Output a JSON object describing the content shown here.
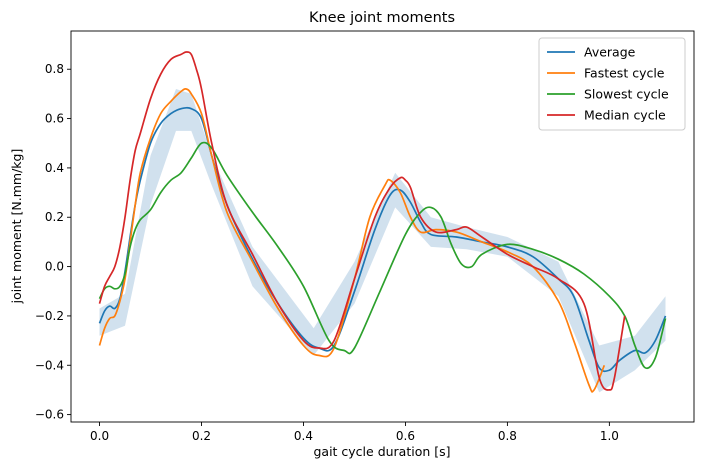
{
  "chart_data": {
    "type": "line",
    "title": "Knee joint moments",
    "xlabel": "gait cycle duration [s]",
    "ylabel": "joint moment [N.mm/kg]",
    "xlim": [
      -0.056,
      1.166
    ],
    "ylim": [
      -0.63,
      0.955
    ],
    "xticks": [
      0.0,
      0.2,
      0.4,
      0.6,
      0.8,
      1.0
    ],
    "xtick_labels": [
      "0.0",
      "0.2",
      "0.4",
      "0.6",
      "0.8",
      "1.0"
    ],
    "yticks": [
      -0.6,
      -0.4,
      -0.2,
      0.0,
      0.2,
      0.4,
      0.6,
      0.8
    ],
    "ytick_labels": [
      "−0.6",
      "−0.4",
      "−0.2",
      "0.0",
      "0.2",
      "0.4",
      "0.6",
      "0.8"
    ],
    "grid": false,
    "legend": {
      "position": "top-right"
    },
    "band": {
      "label": "",
      "color": "#b3cde3",
      "x": [
        0.0,
        0.05,
        0.1,
        0.15,
        0.18,
        0.22,
        0.3,
        0.42,
        0.5,
        0.58,
        0.65,
        0.72,
        0.8,
        0.9,
        0.98,
        1.05,
        1.11
      ],
      "upper": [
        -0.17,
        -0.11,
        0.45,
        0.72,
        0.7,
        0.45,
        0.08,
        -0.25,
        0.02,
        0.38,
        0.2,
        0.16,
        0.12,
        0.02,
        -0.32,
        -0.28,
        -0.12
      ],
      "lower": [
        -0.28,
        -0.24,
        0.25,
        0.55,
        0.55,
        0.33,
        -0.08,
        -0.36,
        -0.15,
        0.24,
        0.08,
        0.07,
        0.04,
        -0.12,
        -0.51,
        -0.42,
        -0.3
      ]
    },
    "series": [
      {
        "name": "Average",
        "color": "#1f77b4",
        "x": [
          0.0,
          0.01,
          0.02,
          0.03,
          0.04,
          0.05,
          0.06,
          0.07,
          0.08,
          0.1,
          0.12,
          0.14,
          0.16,
          0.18,
          0.2,
          0.22,
          0.25,
          0.3,
          0.35,
          0.4,
          0.43,
          0.46,
          0.5,
          0.54,
          0.57,
          0.59,
          0.61,
          0.63,
          0.65,
          0.7,
          0.75,
          0.8,
          0.85,
          0.9,
          0.93,
          0.96,
          0.98,
          1.0,
          1.02,
          1.05,
          1.07,
          1.09,
          1.11
        ],
        "y": [
          -0.23,
          -0.18,
          -0.16,
          -0.17,
          -0.13,
          -0.02,
          0.12,
          0.25,
          0.35,
          0.5,
          0.58,
          0.62,
          0.64,
          0.64,
          0.6,
          0.45,
          0.25,
          0.03,
          -0.15,
          -0.29,
          -0.33,
          -0.32,
          -0.1,
          0.15,
          0.29,
          0.31,
          0.26,
          0.18,
          0.13,
          0.12,
          0.1,
          0.08,
          0.04,
          -0.05,
          -0.12,
          -0.3,
          -0.41,
          -0.42,
          -0.38,
          -0.34,
          -0.35,
          -0.3,
          -0.2
        ]
      },
      {
        "name": "Fastest cycle",
        "color": "#ff7f0e",
        "x": [
          0.0,
          0.01,
          0.02,
          0.03,
          0.04,
          0.05,
          0.06,
          0.07,
          0.08,
          0.1,
          0.12,
          0.14,
          0.16,
          0.17,
          0.18,
          0.2,
          0.22,
          0.25,
          0.3,
          0.35,
          0.4,
          0.43,
          0.46,
          0.5,
          0.53,
          0.56,
          0.57,
          0.59,
          0.61,
          0.63,
          0.66,
          0.7,
          0.75,
          0.8,
          0.85,
          0.9,
          0.93,
          0.96,
          0.97,
          0.99
        ],
        "y": [
          -0.32,
          -0.25,
          -0.21,
          -0.2,
          -0.14,
          -0.05,
          0.1,
          0.25,
          0.38,
          0.52,
          0.62,
          0.67,
          0.71,
          0.72,
          0.7,
          0.62,
          0.45,
          0.22,
          0.02,
          -0.17,
          -0.32,
          -0.36,
          -0.33,
          -0.05,
          0.2,
          0.33,
          0.35,
          0.3,
          0.2,
          0.14,
          0.15,
          0.14,
          0.1,
          0.06,
          0.0,
          -0.14,
          -0.3,
          -0.48,
          -0.5,
          -0.4
        ]
      },
      {
        "name": "Slowest cycle",
        "color": "#2ca02c",
        "x": [
          0.0,
          0.01,
          0.02,
          0.03,
          0.04,
          0.05,
          0.06,
          0.07,
          0.08,
          0.1,
          0.12,
          0.14,
          0.16,
          0.18,
          0.2,
          0.22,
          0.25,
          0.3,
          0.35,
          0.4,
          0.45,
          0.48,
          0.5,
          0.55,
          0.6,
          0.63,
          0.65,
          0.67,
          0.69,
          0.71,
          0.73,
          0.75,
          0.8,
          0.85,
          0.9,
          0.95,
          1.0,
          1.03,
          1.05,
          1.07,
          1.09,
          1.11
        ],
        "y": [
          -0.13,
          -0.09,
          -0.08,
          -0.09,
          -0.08,
          -0.03,
          0.08,
          0.15,
          0.19,
          0.23,
          0.3,
          0.35,
          0.38,
          0.44,
          0.5,
          0.48,
          0.37,
          0.22,
          0.08,
          -0.08,
          -0.3,
          -0.34,
          -0.33,
          -0.1,
          0.13,
          0.22,
          0.24,
          0.2,
          0.09,
          0.01,
          0.0,
          0.05,
          0.09,
          0.07,
          0.03,
          -0.03,
          -0.12,
          -0.2,
          -0.32,
          -0.41,
          -0.37,
          -0.21
        ]
      },
      {
        "name": "Median cycle",
        "color": "#d62728",
        "x": [
          0.0,
          0.01,
          0.02,
          0.03,
          0.04,
          0.05,
          0.06,
          0.07,
          0.08,
          0.1,
          0.12,
          0.14,
          0.16,
          0.17,
          0.18,
          0.19,
          0.2,
          0.22,
          0.25,
          0.3,
          0.35,
          0.4,
          0.43,
          0.46,
          0.5,
          0.54,
          0.57,
          0.59,
          0.6,
          0.61,
          0.63,
          0.66,
          0.7,
          0.72,
          0.75,
          0.8,
          0.85,
          0.9,
          0.95,
          0.98,
          1.0,
          1.01,
          1.03
        ],
        "y": [
          -0.15,
          -0.08,
          -0.04,
          0.0,
          0.08,
          0.2,
          0.35,
          0.47,
          0.54,
          0.68,
          0.78,
          0.84,
          0.86,
          0.87,
          0.86,
          0.8,
          0.72,
          0.5,
          0.25,
          0.05,
          -0.15,
          -0.3,
          -0.33,
          -0.3,
          -0.05,
          0.2,
          0.32,
          0.36,
          0.35,
          0.32,
          0.2,
          0.14,
          0.15,
          0.16,
          0.12,
          0.05,
          0.0,
          -0.05,
          -0.15,
          -0.45,
          -0.5,
          -0.45,
          -0.2
        ]
      }
    ]
  }
}
